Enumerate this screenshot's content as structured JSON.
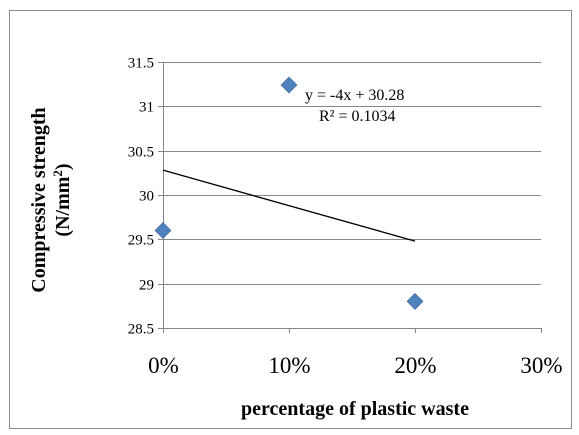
{
  "chart_data": {
    "type": "scatter",
    "title": "",
    "xlabel": "percentage of plastic waste",
    "ylabel_line1": "Compressive strength",
    "ylabel_line2": "(N/mm",
    "ylabel_sup": "2",
    "ylabel_close": ")",
    "xlim": [
      0,
      30
    ],
    "ylim": [
      28.5,
      31.5
    ],
    "xticks": [
      0,
      10,
      20,
      30
    ],
    "xtick_labels": [
      "0%",
      "10%",
      "20%",
      "30%"
    ],
    "yticks": [
      28.5,
      29,
      29.5,
      30,
      30.5,
      31,
      31.5
    ],
    "ytick_labels": [
      "28.5",
      "29",
      "29.5",
      "30",
      "30.5",
      "31",
      "31.5"
    ],
    "grid": "horizontal",
    "legend": "none",
    "series": [
      {
        "marker": "diamond",
        "color": "#4f81bd",
        "x": [
          0,
          10,
          20
        ],
        "y": [
          29.6,
          31.24,
          28.8
        ]
      }
    ],
    "trendline": {
      "type": "linear",
      "slope": -4,
      "intercept": 30.28,
      "x_range": [
        0,
        20
      ],
      "equation": "y = -4x + 30.28",
      "r_squared": "R² = 0.1034"
    }
  }
}
